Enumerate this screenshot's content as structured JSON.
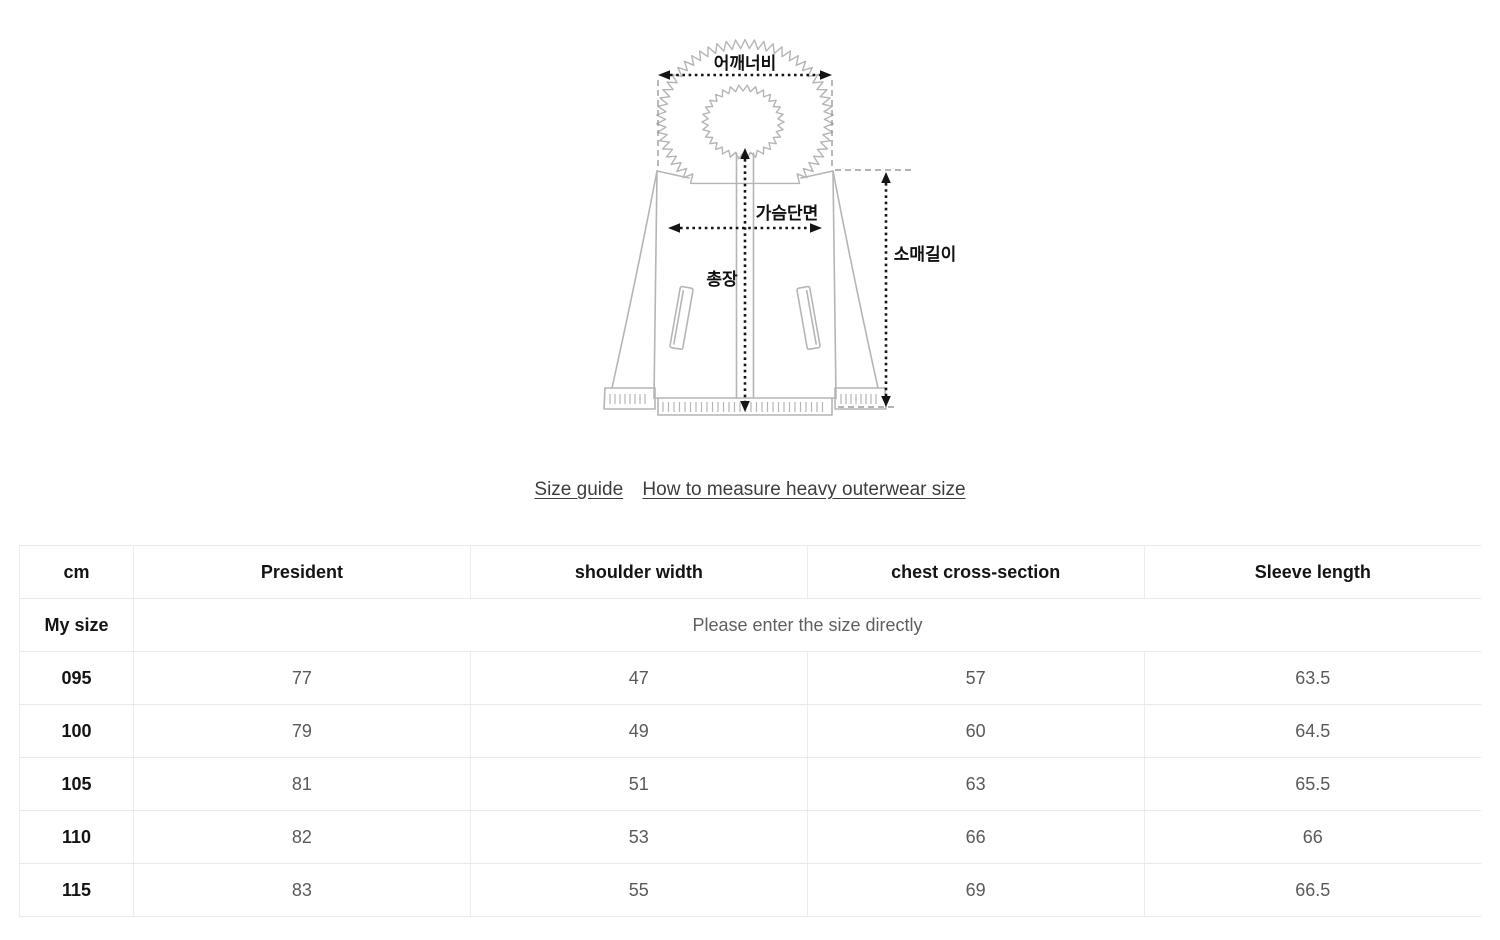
{
  "diagram": {
    "labels": {
      "shoulder_width": "어깨너비",
      "chest_cross_section": "가슴단면",
      "total_length": "총장",
      "sleeve_length": "소매길이"
    }
  },
  "links": {
    "size_guide": "Size guide",
    "how_to_measure": "How to measure heavy outerwear size"
  },
  "size_table": {
    "unit_header": "cm",
    "columns": [
      "President",
      "shoulder width",
      "chest cross-section",
      "Sleeve length"
    ],
    "my_size_label": "My size",
    "my_size_placeholder": "Please enter the size directly",
    "rows": [
      {
        "size": "095",
        "values": [
          "77",
          "47",
          "57",
          "63.5"
        ]
      },
      {
        "size": "100",
        "values": [
          "79",
          "49",
          "60",
          "64.5"
        ]
      },
      {
        "size": "105",
        "values": [
          "81",
          "51",
          "63",
          "65.5"
        ]
      },
      {
        "size": "110",
        "values": [
          "82",
          "53",
          "66",
          "66"
        ]
      },
      {
        "size": "115",
        "values": [
          "83",
          "55",
          "69",
          "66.5"
        ]
      }
    ]
  },
  "colors": {
    "row_border": "#e9e9e9",
    "column_border": "#ededed",
    "header_text": "#141414",
    "value_text": "#5a5a5a",
    "link_text": "#3d3d3d",
    "jacket_outline": "#b5b5b5",
    "arrow": "#151515"
  }
}
